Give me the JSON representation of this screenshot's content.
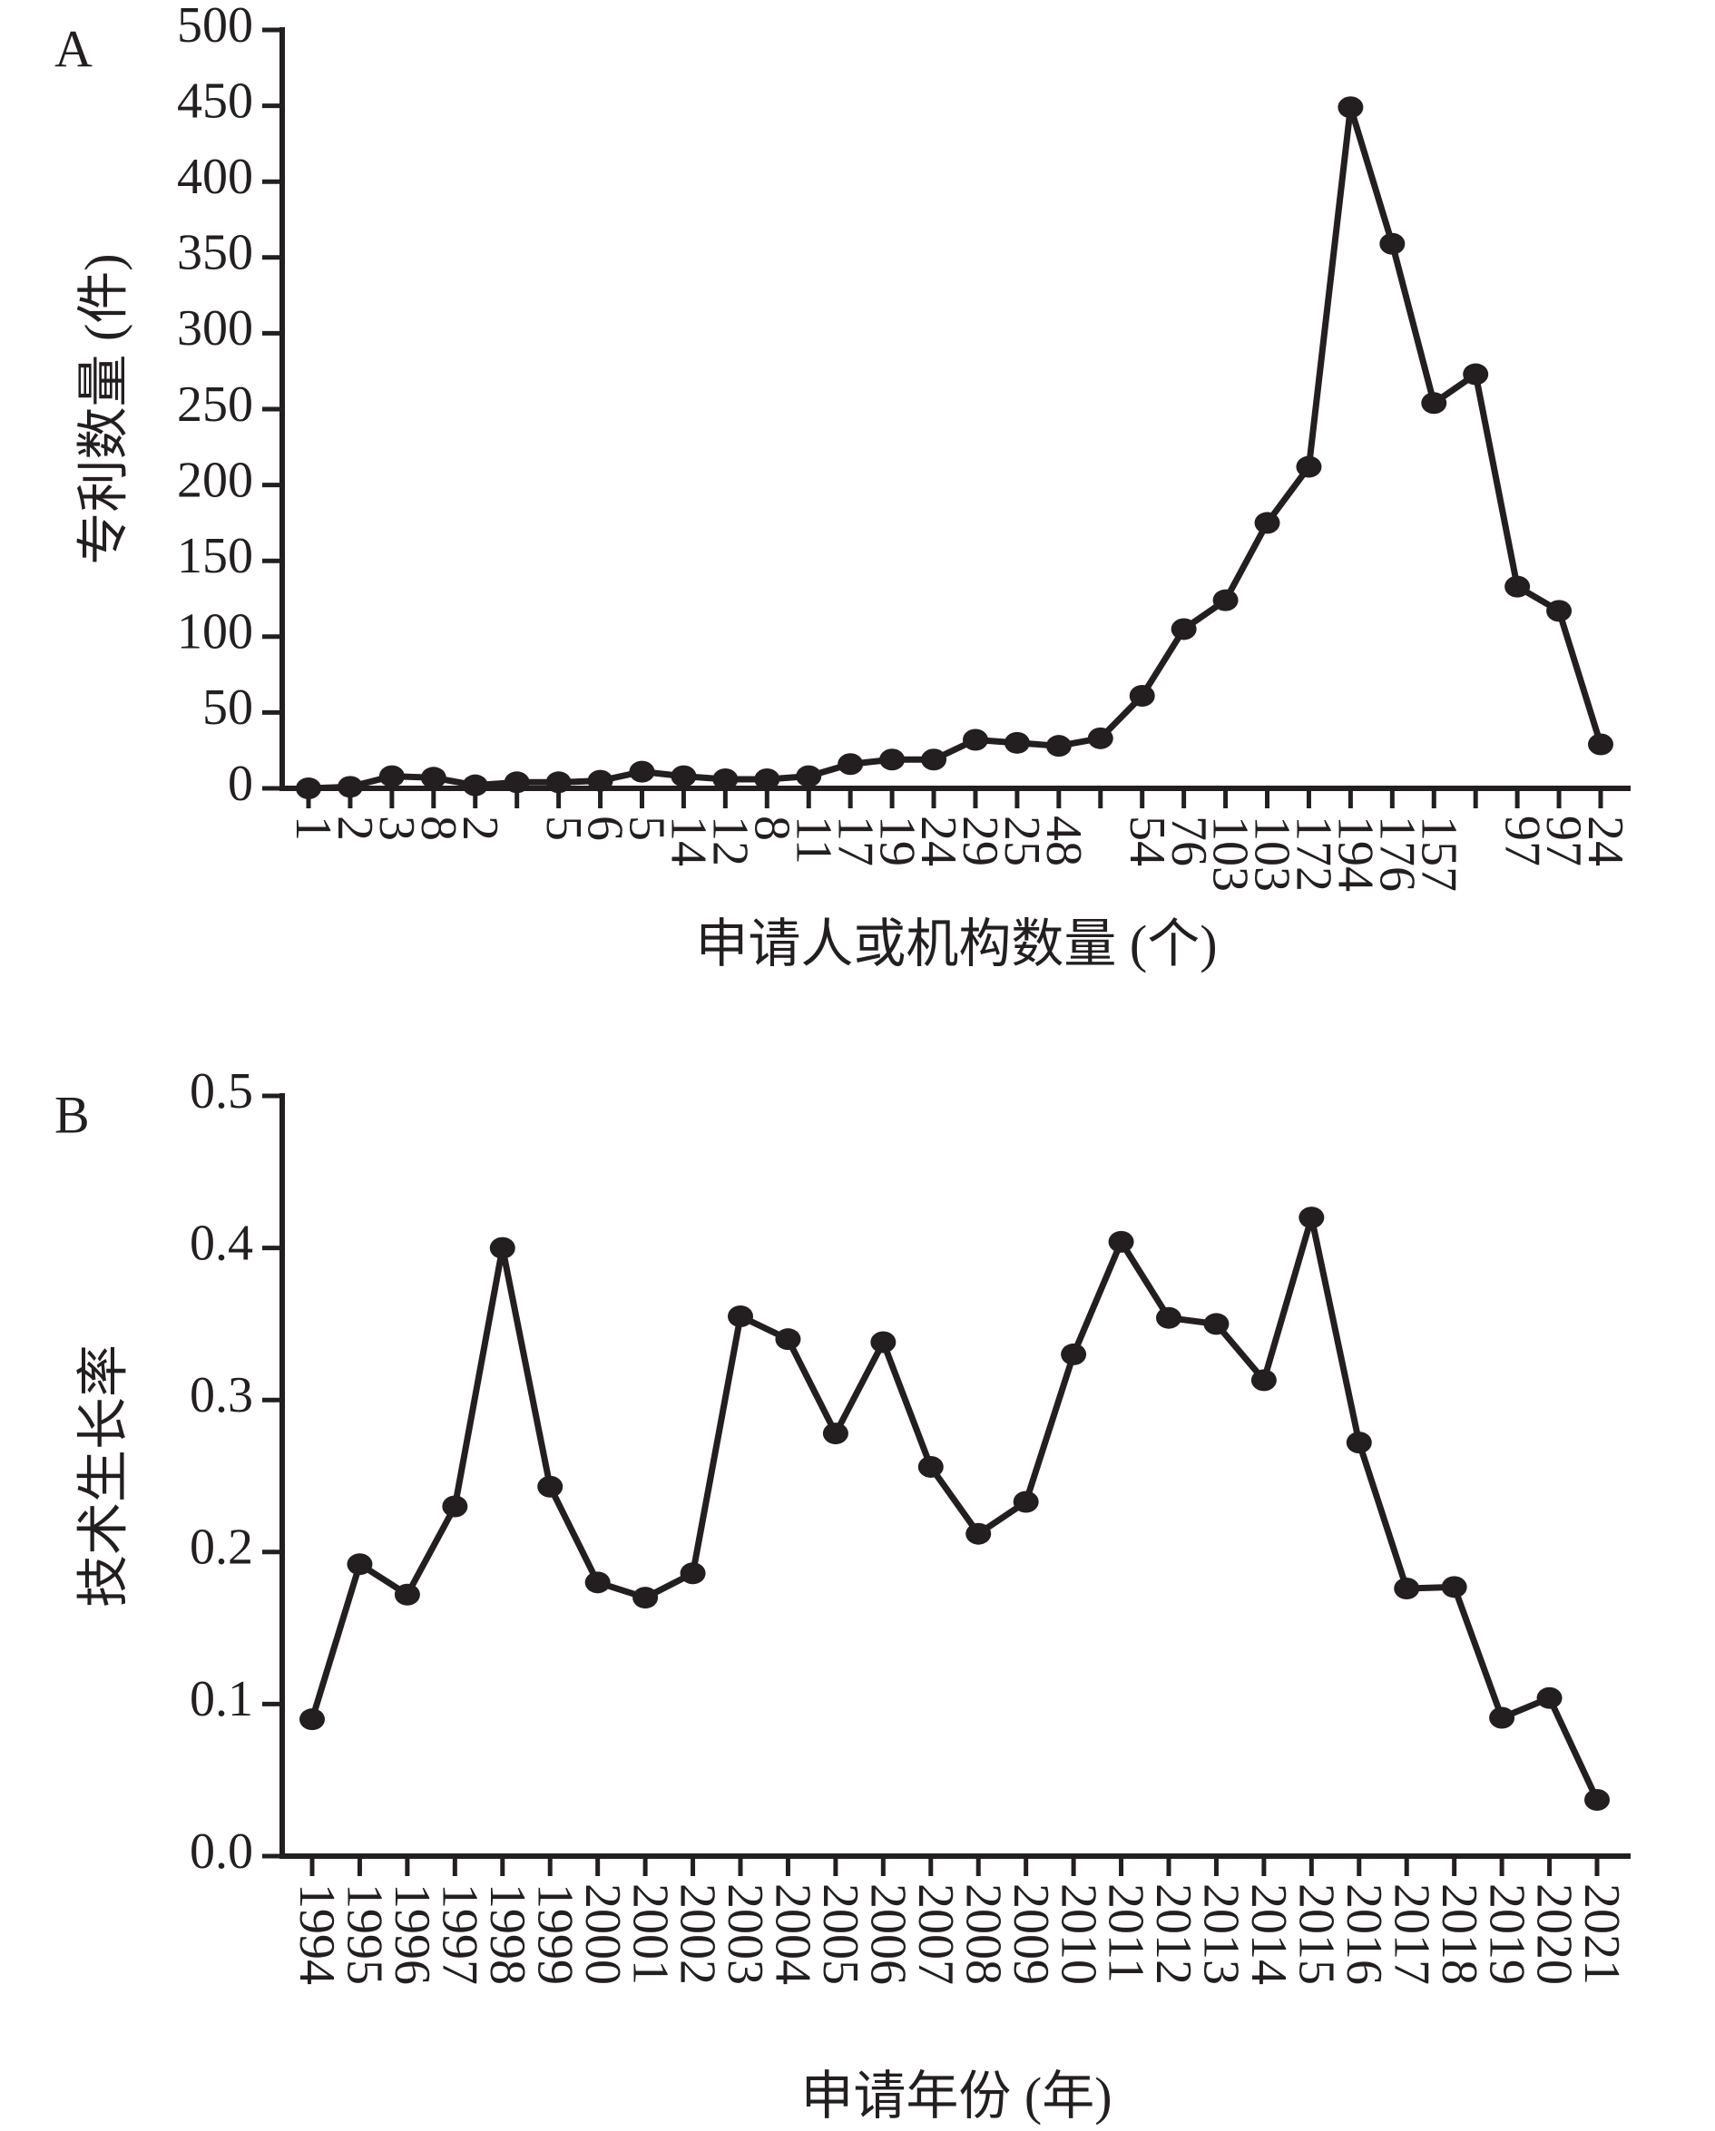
{
  "chart_data": [
    {
      "type": "line",
      "panel": "A",
      "ylabel": "专利数量 (件)",
      "xlabel": "申请人或机构数量 (个)",
      "categories": [
        "1",
        "2",
        "3",
        "8",
        "2",
        null,
        "5",
        "6",
        "5",
        "14",
        "12",
        "8",
        "11",
        "17",
        "19",
        "24",
        "29",
        "25",
        "48",
        null,
        "54",
        "76",
        "103",
        "103",
        "172",
        "194",
        "176",
        "157",
        null,
        "97",
        "97",
        "24"
      ],
      "series": [
        {
          "name": "专利数量",
          "color": "#231f20",
          "values": [
            0,
            1,
            8,
            7,
            2,
            4,
            4,
            5,
            11,
            8,
            6,
            6,
            8,
            16,
            19,
            19,
            32,
            30,
            28,
            33,
            61,
            105,
            124,
            175,
            212,
            449,
            359,
            254,
            273,
            133,
            117,
            29
          ]
        }
      ],
      "ylim": [
        0,
        500
      ],
      "yticks": [
        0,
        50,
        100,
        150,
        200,
        250,
        300,
        350,
        400,
        450,
        500
      ]
    },
    {
      "type": "line",
      "panel": "B",
      "ylabel": "技术生长率",
      "xlabel": "申请年份 (年)",
      "categories": [
        "1994",
        "1995",
        "1996",
        "1997",
        "1998",
        "1999",
        "2000",
        "2001",
        "2002",
        "2003",
        "2004",
        "2005",
        "2006",
        "2007",
        "2008",
        "2009",
        "2010",
        "2011",
        "2012",
        "2013",
        "2014",
        "2015",
        "2016",
        "2017",
        "2018",
        "2019",
        "2020",
        "2021"
      ],
      "series": [
        {
          "name": "技术生长率",
          "color": "#231f20",
          "values": [
            0.09,
            0.192,
            0.172,
            0.23,
            0.4,
            0.243,
            0.18,
            0.17,
            0.186,
            0.355,
            0.34,
            0.278,
            0.338,
            0.256,
            0.212,
            0.233,
            0.33,
            0.404,
            0.354,
            0.35,
            0.313,
            0.42,
            0.272,
            0.176,
            0.177,
            0.091,
            0.104,
            0.037
          ]
        }
      ],
      "ylim": [
        0,
        0.5
      ],
      "yticks": [
        {
          "value": 0,
          "label": "0.0"
        },
        0.1,
        0.2,
        0.3,
        0.4,
        0.5
      ]
    }
  ]
}
